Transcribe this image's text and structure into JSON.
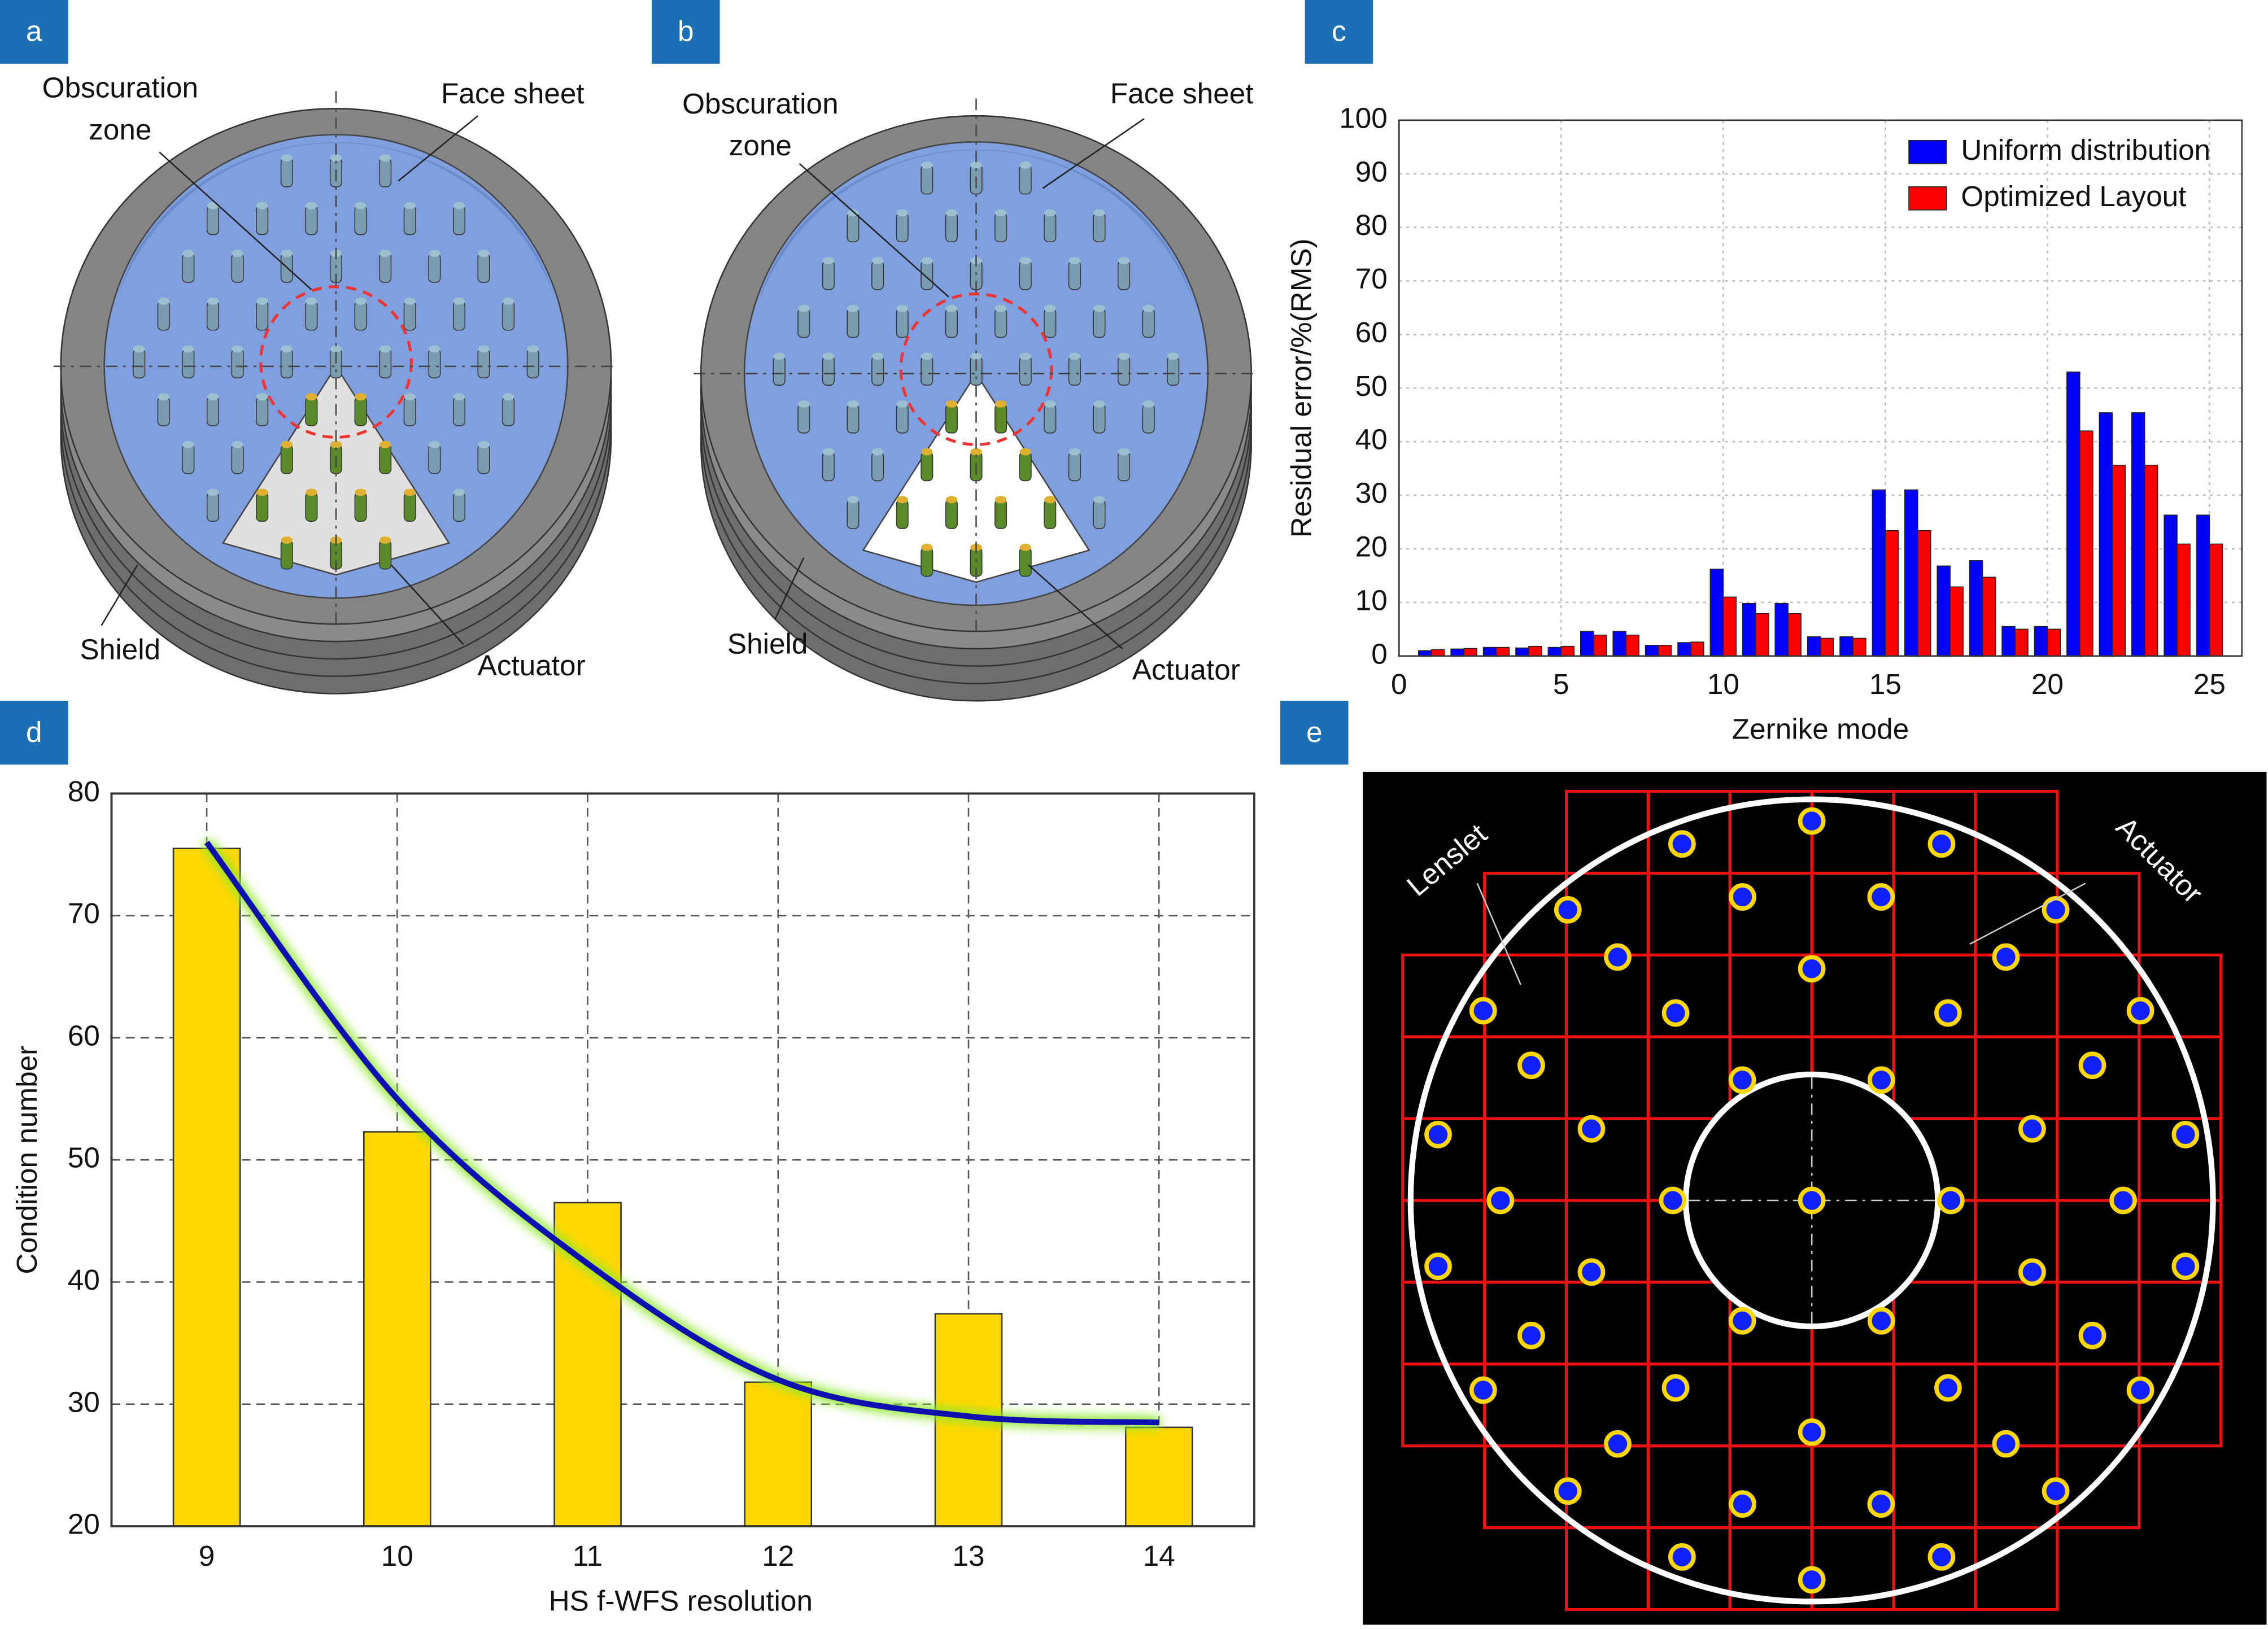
{
  "panel_labels": [
    "a",
    "b",
    "c",
    "d",
    "e"
  ],
  "diagram_a": {
    "obscuration": [
      "Obscuration",
      "zone"
    ],
    "face_sheet": "Face sheet",
    "shield": "Shield",
    "actuator": "Actuator"
  },
  "diagram_b": {
    "obscuration": [
      "Obscuration",
      "zone"
    ],
    "face_sheet": "Face sheet",
    "shield": "Shield",
    "actuator": "Actuator"
  },
  "diagram_e": {
    "lenslet": "Lenslet",
    "actuator": "Actuator"
  },
  "chart_data": [
    {
      "type": "bar",
      "x_label": "Zernike mode",
      "y_label": "Residual error/%(RMS)",
      "x": [
        1,
        2,
        3,
        4,
        5,
        6,
        7,
        8,
        9,
        10,
        11,
        12,
        13,
        14,
        15,
        16,
        17,
        18,
        19,
        20,
        21,
        22,
        23,
        24,
        25
      ],
      "series": [
        {
          "name": "Uniform distribution",
          "color": "#0000ff",
          "values": [
            1.0,
            1.3,
            1.6,
            1.5,
            1.6,
            4.6,
            4.6,
            2.0,
            2.5,
            16.2,
            9.8,
            9.8,
            3.6,
            3.6,
            31,
            31,
            16.8,
            17.8,
            5.5,
            5.5,
            53,
            45.4,
            45.4,
            26.3,
            26.3
          ]
        },
        {
          "name": "Optimized Layout",
          "color": "#ff0000",
          "values": [
            1.2,
            1.4,
            1.6,
            1.8,
            1.8,
            3.9,
            3.9,
            2.0,
            2.6,
            11,
            7.9,
            7.9,
            3.3,
            3.3,
            23.4,
            23.4,
            12.9,
            14.7,
            5.0,
            5.0,
            42,
            35.6,
            35.6,
            20.9,
            20.9
          ]
        }
      ],
      "xlim": [
        0,
        26
      ],
      "xticks": [
        0,
        5,
        10,
        15,
        20,
        25
      ],
      "ylim": [
        0,
        100
      ],
      "yticks": [
        0,
        10,
        20,
        30,
        40,
        50,
        60,
        70,
        80,
        90,
        100
      ],
      "grid": true,
      "legend": "upper right"
    },
    {
      "type": "bar",
      "x_label": "HS f-WFS resolution",
      "y_label": "Condition number",
      "categories": [
        "9",
        "10",
        "11",
        "12",
        "13",
        "14"
      ],
      "series": [
        {
          "type": "bar",
          "color": "#ffd700",
          "values": [
            75.5,
            52.3,
            46.5,
            31.8,
            37.4,
            28.1
          ]
        },
        {
          "type": "line",
          "color": "#1010b0",
          "values": [
            76,
            55,
            41.5,
            32,
            29,
            28.5
          ]
        }
      ],
      "ylim": [
        20,
        80
      ],
      "yticks": [
        20,
        30,
        40,
        50,
        60,
        70,
        80
      ],
      "grid": true
    }
  ]
}
